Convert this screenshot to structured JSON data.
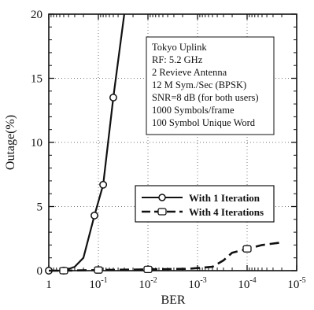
{
  "chart_data": {
    "type": "line",
    "xlabel": "BER",
    "ylabel": "Outage(%)",
    "x_scale": "log-reversed",
    "xlim": [
      1,
      1e-05
    ],
    "ylim": [
      0,
      20
    ],
    "grid": "dotted",
    "x_ticks": [
      {
        "value": 1,
        "base": "1",
        "exp": ""
      },
      {
        "value": 0.1,
        "base": "10",
        "exp": "-1"
      },
      {
        "value": 0.01,
        "base": "10",
        "exp": "-2"
      },
      {
        "value": 0.001,
        "base": "10",
        "exp": "-3"
      },
      {
        "value": 0.0001,
        "base": "10",
        "exp": "-4"
      },
      {
        "value": 1e-05,
        "base": "10",
        "exp": "-5"
      }
    ],
    "y_ticks": [
      0,
      5,
      10,
      15,
      20
    ],
    "annotation_lines": [
      "Tokyo Uplink",
      "RF: 5.2 GHz",
      "2 Revieve Antenna",
      "12 M Sym./Sec (BPSK)",
      "SNR=8 dB (for both users)",
      "1000 Symbols/frame",
      "100 Symbol Unique Word"
    ],
    "legend_placement": "center-right",
    "series": [
      {
        "name": "With 1 Iteration",
        "color": "#111111",
        "style": "solid",
        "x": [
          1,
          0.5,
          0.3,
          0.2,
          0.12,
          0.08,
          0.05,
          0.03
        ],
        "y": [
          0,
          0,
          0.3,
          1.0,
          4.3,
          6.7,
          13.5,
          20
        ],
        "markers": [
          true,
          true,
          false,
          false,
          true,
          true,
          true,
          false
        ]
      },
      {
        "name": "With 4 Iterations",
        "color": "#111111",
        "style": "dashed",
        "x": [
          1,
          0.5,
          0.1,
          0.01,
          0.0015,
          0.0005,
          0.0003,
          0.0002,
          0.0001,
          5e-05,
          2e-05
        ],
        "y": [
          0,
          0,
          0.05,
          0.1,
          0.15,
          0.3,
          0.8,
          1.4,
          1.7,
          2.0,
          2.2
        ],
        "markers": [
          false,
          true,
          true,
          true,
          false,
          false,
          false,
          false,
          true,
          false,
          false
        ]
      }
    ]
  }
}
